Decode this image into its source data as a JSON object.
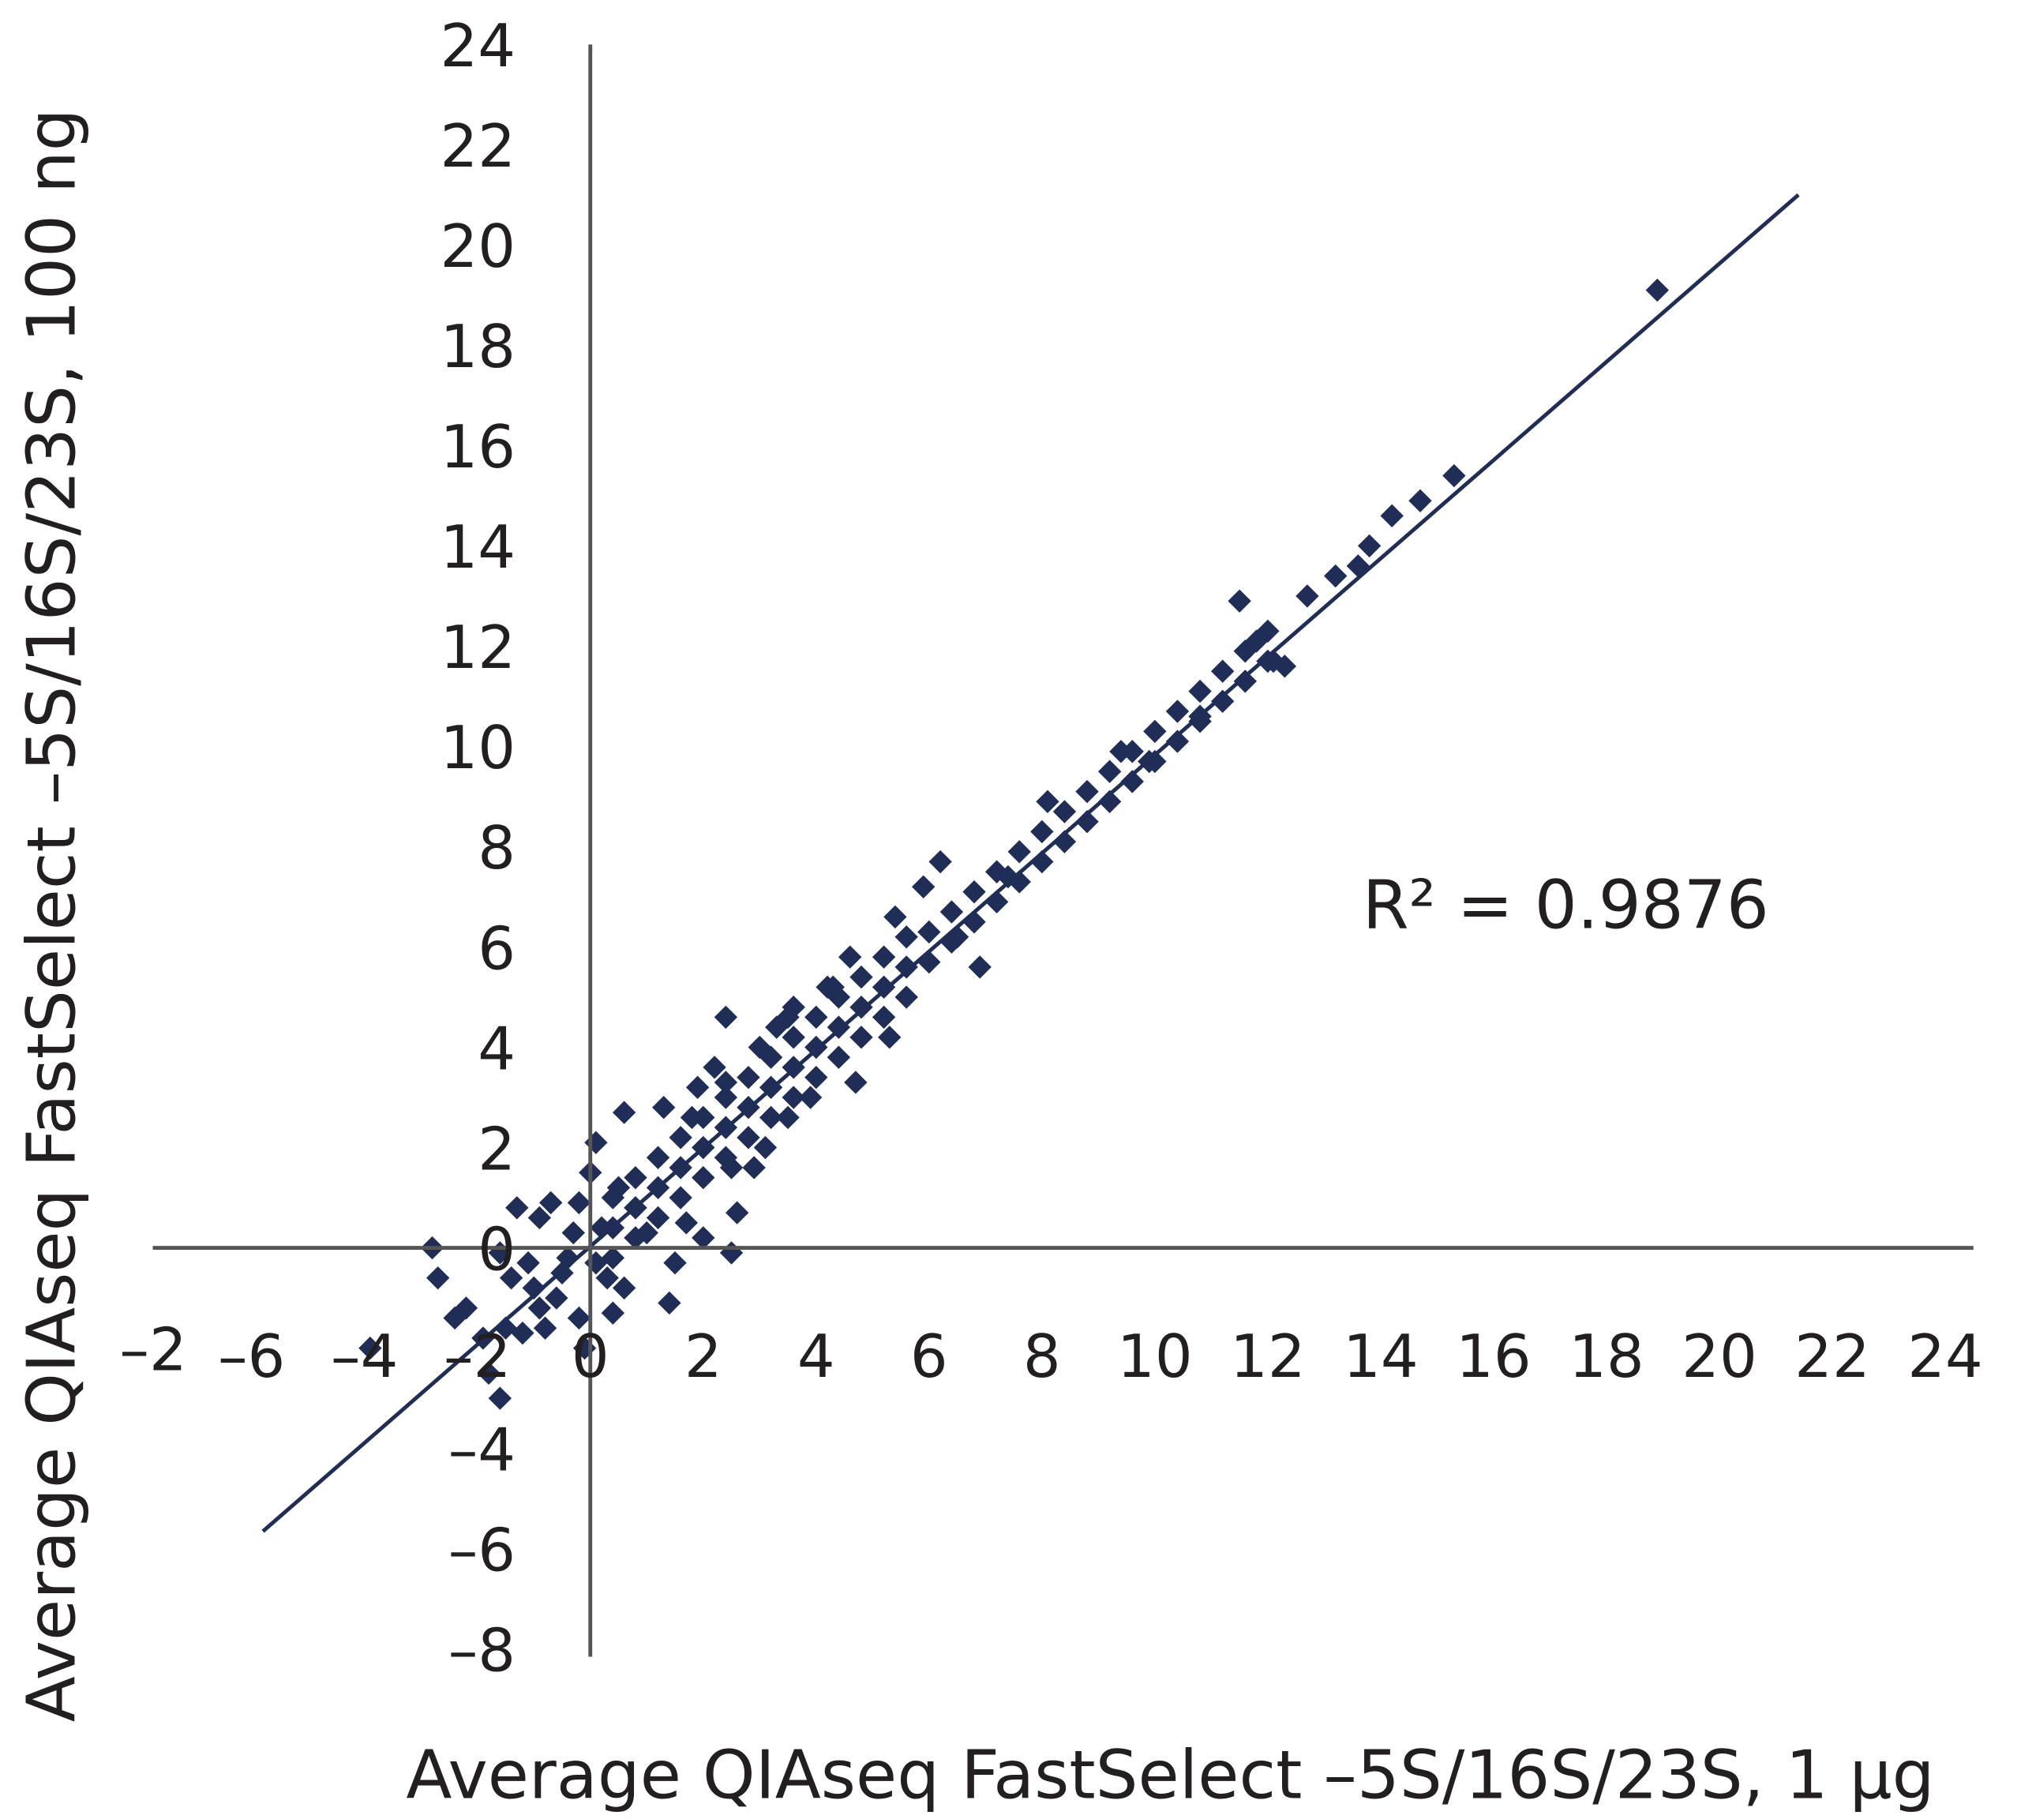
{
  "chart_data": {
    "type": "scatter",
    "title": "",
    "xlabel": "Average QIAseq FastSelect –5S/16S/23S, 1 µg",
    "ylabel": "Average QIAseq FastSelect –5S/16S/23S, 100 ng",
    "xlim": [
      -7.75,
      24.5
    ],
    "ylim": [
      -8,
      24
    ],
    "x_ticks": [
      "–6",
      "–4",
      "–2",
      "0",
      "2",
      "4",
      "6",
      "8",
      "10",
      "12",
      "14",
      "16",
      "18",
      "20",
      "22",
      "24"
    ],
    "x_tick_values": [
      -6,
      -4,
      -2,
      0,
      2,
      4,
      6,
      8,
      10,
      12,
      14,
      16,
      18,
      20,
      22,
      24
    ],
    "y_ticks": [
      "–8",
      "–6",
      "–4",
      "–2",
      "0",
      "2",
      "4",
      "6",
      "8",
      "10",
      "12",
      "14",
      "16",
      "18",
      "20",
      "22",
      "24"
    ],
    "y_tick_values": [
      -8,
      -6,
      -4,
      -2,
      0,
      2,
      4,
      6,
      8,
      10,
      12,
      14,
      16,
      18,
      20,
      22,
      24
    ],
    "grid": false,
    "legend": "none",
    "annotation": "R² = 0.9876",
    "trendline": {
      "slope": 0.98,
      "intercept": 0.03,
      "x_range": [
        -5.8,
        21.4
      ]
    },
    "colors": {
      "points": "#1f2d57",
      "trendline": "#1f2d57",
      "axes": "#555555"
    },
    "points": [
      [
        -1.6,
        -0.1
      ],
      [
        -2.8,
        0
      ],
      [
        -2.7,
        -0.6
      ],
      [
        -2.2,
        -1.2
      ],
      [
        -2.4,
        -1.4
      ],
      [
        -1.9,
        -1.8
      ],
      [
        -1.5,
        -1.6
      ],
      [
        -1.8,
        -2.5
      ],
      [
        -1.6,
        -3.0
      ],
      [
        -3.9,
        -2.0
      ],
      [
        -1.2,
        -1.7
      ],
      [
        -0.8,
        -1.6
      ],
      [
        -0.2,
        -1.4
      ],
      [
        -0.1,
        -2.0
      ],
      [
        -1.3,
        0.8
      ],
      [
        -0.9,
        0.6
      ],
      [
        -0.7,
        0.9
      ],
      [
        -0.5,
        -0.5
      ],
      [
        -1.0,
        -0.8
      ],
      [
        -0.6,
        -1.0
      ],
      [
        -0.3,
        0.3
      ],
      [
        0.1,
        -0.3
      ],
      [
        0.2,
        0.4
      ],
      [
        -0.2,
        0.9
      ],
      [
        0.0,
        1.5
      ],
      [
        0.1,
        2.1
      ],
      [
        0.6,
        2.7
      ],
      [
        0.5,
        1.2
      ],
      [
        0.8,
        0.8
      ],
      [
        1.0,
        0.3
      ],
      [
        1.5,
        -0.3
      ],
      [
        1.4,
        -1.1
      ],
      [
        2.0,
        0.2
      ],
      [
        2.5,
        -0.1
      ],
      [
        2.6,
        0.7
      ],
      [
        2.5,
        1.6
      ],
      [
        2.9,
        1.6
      ],
      [
        3.1,
        2.0
      ],
      [
        3.5,
        2.6
      ],
      [
        -1.1,
        -0.3
      ],
      [
        -0.4,
        -0.2
      ],
      [
        0.3,
        -0.6
      ],
      [
        0.4,
        -1.3
      ],
      [
        -0.9,
        -1.2
      ],
      [
        -1.4,
        -0.6
      ],
      [
        0.4,
        -0.2
      ],
      [
        0.4,
        0.4
      ],
      [
        0.4,
        1.0
      ],
      [
        0.8,
        0.2
      ],
      [
        0.8,
        0.8
      ],
      [
        0.8,
        1.4
      ],
      [
        1.2,
        0.6
      ],
      [
        1.2,
        1.2
      ],
      [
        1.2,
        1.8
      ],
      [
        1.6,
        1.0
      ],
      [
        1.6,
        1.6
      ],
      [
        1.6,
        2.2
      ],
      [
        2.0,
        1.4
      ],
      [
        2.0,
        2.0
      ],
      [
        2.0,
        2.6
      ],
      [
        2.4,
        1.8
      ],
      [
        2.4,
        2.4
      ],
      [
        2.4,
        3.0
      ],
      [
        2.8,
        2.2
      ],
      [
        2.8,
        2.8
      ],
      [
        2.8,
        3.4
      ],
      [
        3.2,
        2.6
      ],
      [
        3.2,
        3.2
      ],
      [
        3.2,
        3.8
      ],
      [
        3.6,
        3.0
      ],
      [
        3.6,
        3.6
      ],
      [
        3.6,
        4.2
      ],
      [
        4.0,
        3.4
      ],
      [
        4.0,
        4.0
      ],
      [
        4.0,
        4.6
      ],
      [
        4.4,
        3.8
      ],
      [
        4.4,
        4.4
      ],
      [
        4.4,
        5.0
      ],
      [
        4.8,
        4.2
      ],
      [
        4.8,
        4.8
      ],
      [
        4.8,
        5.4
      ],
      [
        5.2,
        4.6
      ],
      [
        5.2,
        5.2
      ],
      [
        5.2,
        5.8
      ],
      [
        5.6,
        5.0
      ],
      [
        5.6,
        5.6
      ],
      [
        5.6,
        6.2
      ],
      [
        6.0,
        5.7
      ],
      [
        6.0,
        6.3
      ],
      [
        6.4,
        6.1
      ],
      [
        6.4,
        6.7
      ],
      [
        6.8,
        6.5
      ],
      [
        6.8,
        7.1
      ],
      [
        7.2,
        6.9
      ],
      [
        7.2,
        7.5
      ],
      [
        7.6,
        7.3
      ],
      [
        7.6,
        7.9
      ],
      [
        8.0,
        7.7
      ],
      [
        8.0,
        8.3
      ],
      [
        8.4,
        8.1
      ],
      [
        8.4,
        8.7
      ],
      [
        8.8,
        8.5
      ],
      [
        8.8,
        9.1
      ],
      [
        9.2,
        8.9
      ],
      [
        9.2,
        9.5
      ],
      [
        9.6,
        9.3
      ],
      [
        9.6,
        9.9
      ],
      [
        10.0,
        9.7
      ],
      [
        10.0,
        10.3
      ],
      [
        10.4,
        10.1
      ],
      [
        10.4,
        10.7
      ],
      [
        10.8,
        10.5
      ],
      [
        10.8,
        11.1
      ],
      [
        11.2,
        10.9
      ],
      [
        11.2,
        11.5
      ],
      [
        11.6,
        11.3
      ],
      [
        11.6,
        11.9
      ],
      [
        12.0,
        11.7
      ],
      [
        12.0,
        12.3
      ],
      [
        1.8,
        2.6
      ],
      [
        2.4,
        3.3
      ],
      [
        3.0,
        4.0
      ],
      [
        3.6,
        4.8
      ],
      [
        4.2,
        5.2
      ],
      [
        2.4,
        4.6
      ],
      [
        3.5,
        4.6
      ],
      [
        4.3,
        5.2
      ],
      [
        4.7,
        3.3
      ],
      [
        5.3,
        4.2
      ],
      [
        6.2,
        7.7
      ],
      [
        5.9,
        7.2
      ],
      [
        6.9,
        5.6
      ],
      [
        8.1,
        8.9
      ],
      [
        9.4,
        9.9
      ],
      [
        11.5,
        12.9
      ],
      [
        12.3,
        11.6
      ],
      [
        12.7,
        13.0
      ],
      [
        13.2,
        13.4
      ],
      [
        13.6,
        13.6
      ],
      [
        13.8,
        14.0
      ],
      [
        14.2,
        14.6
      ],
      [
        14.7,
        14.9
      ],
      [
        15.3,
        15.4
      ],
      [
        18.9,
        19.1
      ],
      [
        10.8,
        10.6
      ],
      [
        11.8,
        12.1
      ],
      [
        9.9,
        9.7
      ],
      [
        7.4,
        7.4
      ],
      [
        6.5,
        6.2
      ],
      [
        12.1,
        11.7
      ],
      [
        1.7,
        0.5
      ],
      [
        1.3,
        2.8
      ],
      [
        2.2,
        3.6
      ],
      [
        4.6,
        5.8
      ],
      [
        5.4,
        6.6
      ],
      [
        3.9,
        3.0
      ],
      [
        0.6,
        -0.8
      ],
      [
        1.9,
        3.2
      ],
      [
        3.3,
        4.4
      ]
    ]
  }
}
